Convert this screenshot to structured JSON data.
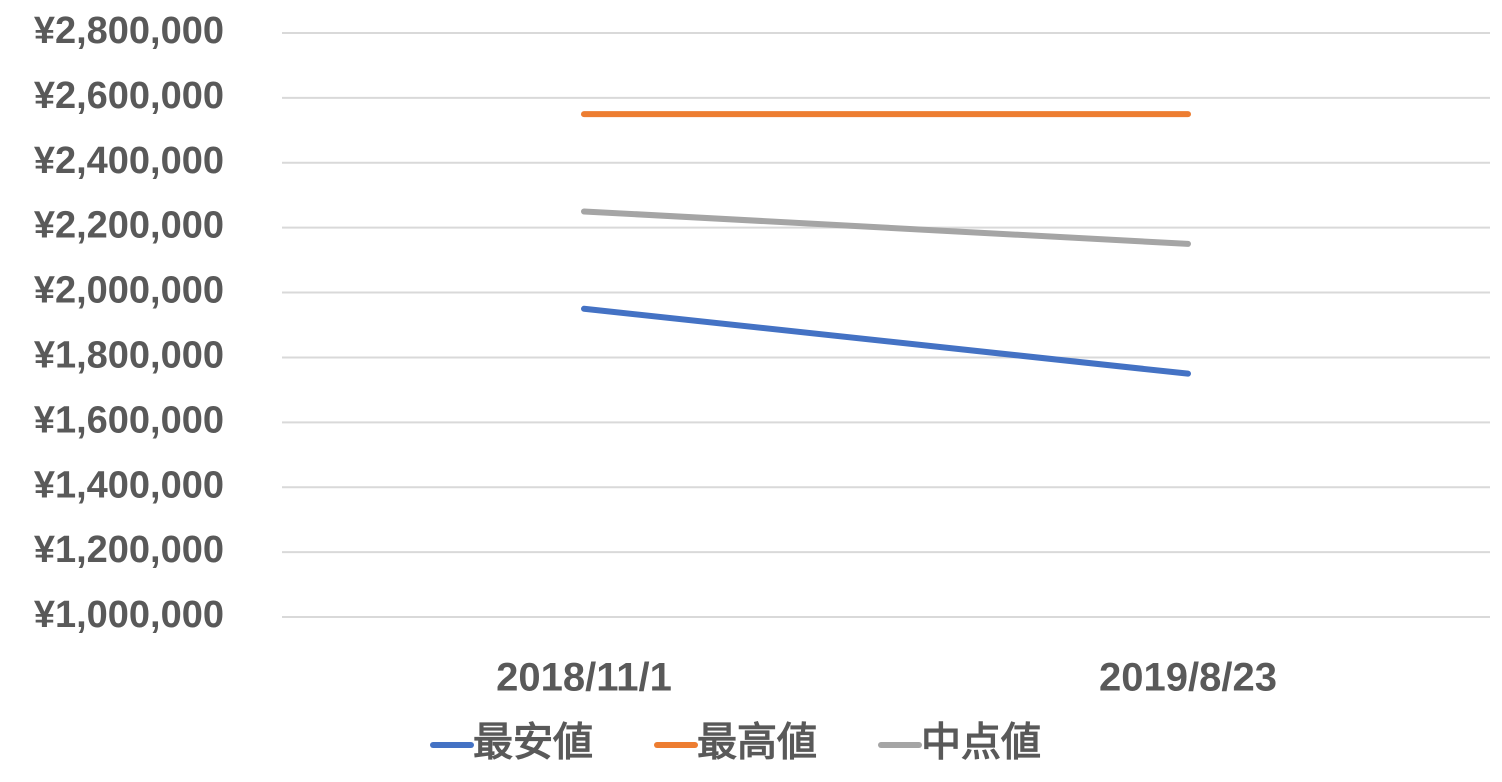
{
  "chart_data": {
    "type": "line",
    "categories": [
      "2018/11/1",
      "2019/8/23"
    ],
    "series": [
      {
        "name": "最安値",
        "color": "#4472c4",
        "values": [
          1950000,
          1750000
        ]
      },
      {
        "name": "最高値",
        "color": "#ed7d31",
        "values": [
          2550000,
          2550000
        ]
      },
      {
        "name": "中点値",
        "color": "#a5a5a5",
        "values": [
          2250000,
          2150000
        ]
      }
    ],
    "ylim": [
      1000000,
      2800000
    ],
    "yticks": [
      {
        "value": 1000000,
        "label": "¥1,000,000"
      },
      {
        "value": 1200000,
        "label": "¥1,200,000"
      },
      {
        "value": 1400000,
        "label": "¥1,400,000"
      },
      {
        "value": 1600000,
        "label": "¥1,600,000"
      },
      {
        "value": 1800000,
        "label": "¥1,800,000"
      },
      {
        "value": 2000000,
        "label": "¥2,000,000"
      },
      {
        "value": 2200000,
        "label": "¥2,200,000"
      },
      {
        "value": 2400000,
        "label": "¥2,400,000"
      },
      {
        "value": 2600000,
        "label": "¥2,600,000"
      },
      {
        "value": 2800000,
        "label": "¥2,800,000"
      }
    ],
    "grid": true,
    "legend": "bottom"
  }
}
